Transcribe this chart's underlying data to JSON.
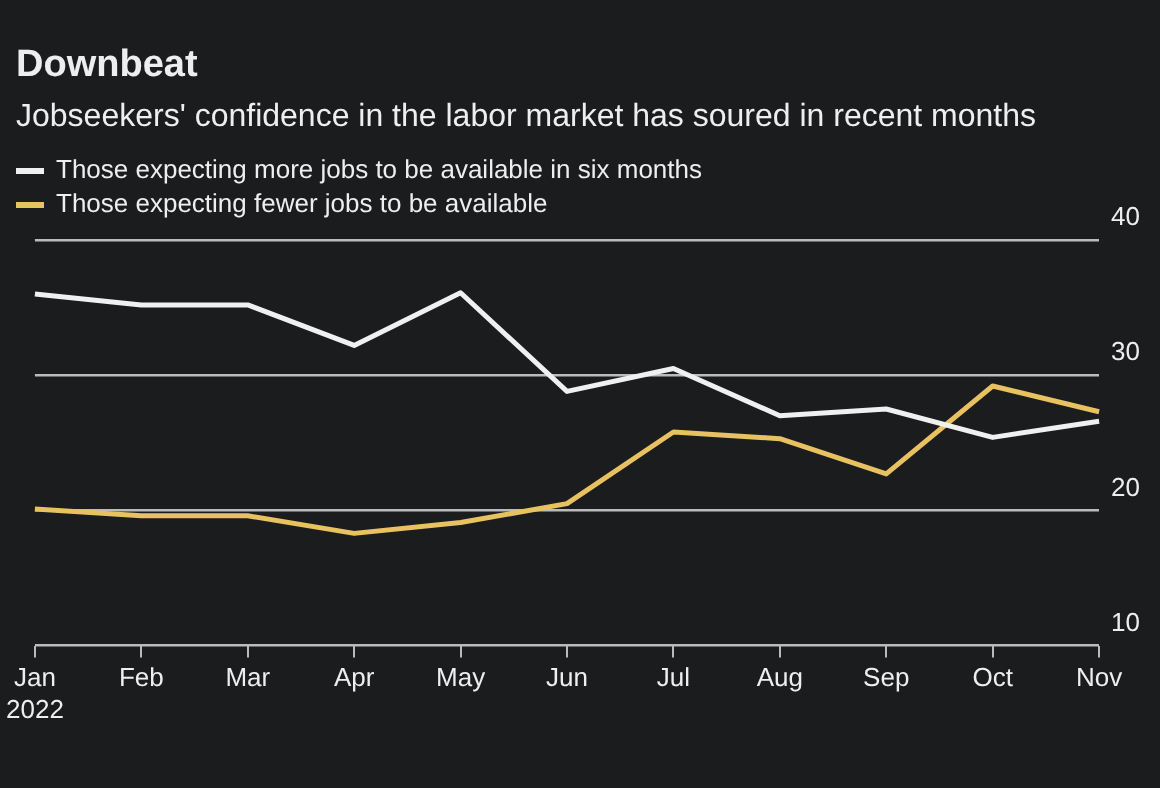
{
  "chart_data": {
    "type": "line",
    "title": "Downbeat",
    "subtitle": "Jobseekers' confidence in the labor market has soured in recent months",
    "categories": [
      "Jan\n2022",
      "Feb",
      "Mar",
      "Apr",
      "May",
      "Jun",
      "Jul",
      "Aug",
      "Sep",
      "Oct",
      "Nov"
    ],
    "series": [
      {
        "name": "Those expecting more jobs to be available in six months",
        "color": "#f0f0f0",
        "values": [
          36.0,
          35.2,
          35.2,
          32.2,
          36.1,
          28.8,
          30.5,
          27.0,
          27.5,
          25.4,
          26.6
        ]
      },
      {
        "name": "Those expecting fewer jobs to be available",
        "color": "#e8c260",
        "values": [
          20.1,
          19.6,
          19.6,
          18.3,
          19.1,
          20.5,
          25.8,
          25.3,
          22.7,
          29.2,
          27.3
        ]
      }
    ],
    "ylim": [
      10,
      40
    ],
    "yticks": [
      10,
      20,
      30,
      40
    ],
    "grid": "y",
    "legend": "top left",
    "marker": "none",
    "line_style": "solid"
  }
}
